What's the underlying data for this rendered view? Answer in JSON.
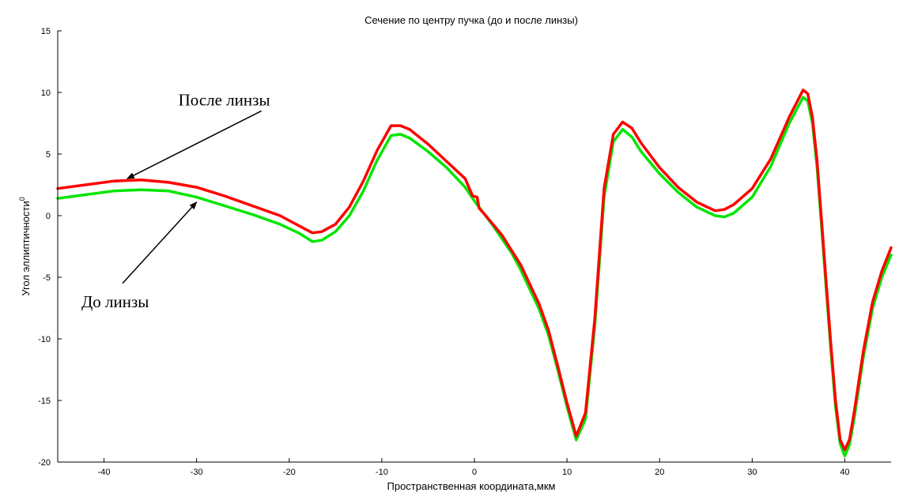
{
  "chart_data": {
    "type": "line",
    "title": "Сечение по центру пучка (до и после линзы)",
    "xlabel": "Пространственная координата,мкм",
    "ylabel": "Угол эллиптичности",
    "ylabel_sup": "0",
    "xlim": [
      -45,
      45
    ],
    "ylim": [
      -20,
      15
    ],
    "xticks": [
      -40,
      -30,
      -20,
      -10,
      0,
      10,
      20,
      30,
      40
    ],
    "yticks": [
      15,
      10,
      5,
      0,
      -5,
      -10,
      -15,
      -20
    ],
    "grid": false,
    "series": [
      {
        "name": "До линзы",
        "color": "#00e600",
        "points": [
          [
            -45,
            1.4
          ],
          [
            -42,
            1.7
          ],
          [
            -39,
            2.0
          ],
          [
            -36,
            2.1
          ],
          [
            -33,
            2.0
          ],
          [
            -30,
            1.5
          ],
          [
            -27,
            0.8
          ],
          [
            -24,
            0.1
          ],
          [
            -21,
            -0.7
          ],
          [
            -19,
            -1.4
          ],
          [
            -17.5,
            -2.1
          ],
          [
            -16.5,
            -2.0
          ],
          [
            -15,
            -1.3
          ],
          [
            -13.5,
            0.0
          ],
          [
            -12,
            2.0
          ],
          [
            -10.5,
            4.5
          ],
          [
            -9,
            6.5
          ],
          [
            -8,
            6.6
          ],
          [
            -7,
            6.3
          ],
          [
            -5,
            5.2
          ],
          [
            -3,
            3.9
          ],
          [
            -1,
            2.3
          ],
          [
            0,
            1.2
          ],
          [
            1,
            0.2
          ],
          [
            2,
            -0.8
          ],
          [
            3,
            -1.9
          ],
          [
            4,
            -3.0
          ],
          [
            5,
            -4.4
          ],
          [
            6,
            -6.0
          ],
          [
            7,
            -7.6
          ],
          [
            8,
            -9.7
          ],
          [
            9,
            -12.5
          ],
          [
            10,
            -15.5
          ],
          [
            11,
            -18.2
          ],
          [
            12,
            -16.5
          ],
          [
            13,
            -9.0
          ],
          [
            14,
            1.5
          ],
          [
            15,
            6.0
          ],
          [
            16,
            7.0
          ],
          [
            17,
            6.4
          ],
          [
            18,
            5.2
          ],
          [
            20,
            3.4
          ],
          [
            22,
            1.9
          ],
          [
            24,
            0.7
          ],
          [
            26,
            0.0
          ],
          [
            27,
            -0.1
          ],
          [
            28,
            0.2
          ],
          [
            30,
            1.5
          ],
          [
            32,
            4.0
          ],
          [
            34,
            7.5
          ],
          [
            35.5,
            9.6
          ],
          [
            36,
            9.3
          ],
          [
            36.5,
            7.5
          ],
          [
            37,
            4.0
          ],
          [
            37.5,
            -1.0
          ],
          [
            38,
            -6.0
          ],
          [
            38.5,
            -11.0
          ],
          [
            39,
            -15.5
          ],
          [
            39.5,
            -18.5
          ],
          [
            40,
            -19.5
          ],
          [
            40.5,
            -18.6
          ],
          [
            41,
            -16.5
          ],
          [
            42,
            -11.5
          ],
          [
            43,
            -7.5
          ],
          [
            44,
            -5.0
          ],
          [
            45,
            -3.2
          ]
        ]
      },
      {
        "name": "После линзы",
        "color": "#ff0000",
        "points": [
          [
            -45,
            2.2
          ],
          [
            -42,
            2.5
          ],
          [
            -39,
            2.8
          ],
          [
            -36,
            2.9
          ],
          [
            -33,
            2.7
          ],
          [
            -30,
            2.3
          ],
          [
            -27,
            1.6
          ],
          [
            -24,
            0.8
          ],
          [
            -21,
            0.0
          ],
          [
            -19,
            -0.8
          ],
          [
            -17.5,
            -1.4
          ],
          [
            -16.5,
            -1.3
          ],
          [
            -15,
            -0.7
          ],
          [
            -13.5,
            0.7
          ],
          [
            -12,
            2.8
          ],
          [
            -10.5,
            5.3
          ],
          [
            -9,
            7.3
          ],
          [
            -8,
            7.3
          ],
          [
            -7,
            7.0
          ],
          [
            -5,
            5.8
          ],
          [
            -3,
            4.4
          ],
          [
            -1,
            3.0
          ],
          [
            -0.2,
            1.6
          ],
          [
            0.3,
            1.5
          ],
          [
            0.5,
            0.6
          ],
          [
            1,
            0.2
          ],
          [
            2,
            -0.7
          ],
          [
            3,
            -1.6
          ],
          [
            4,
            -2.8
          ],
          [
            5,
            -4.0
          ],
          [
            6,
            -5.6
          ],
          [
            7,
            -7.2
          ],
          [
            8,
            -9.3
          ],
          [
            9,
            -12.2
          ],
          [
            10,
            -15.2
          ],
          [
            11,
            -17.9
          ],
          [
            12,
            -16.0
          ],
          [
            13,
            -8.4
          ],
          [
            14,
            2.2
          ],
          [
            15,
            6.6
          ],
          [
            16,
            7.6
          ],
          [
            17,
            7.1
          ],
          [
            18,
            5.9
          ],
          [
            20,
            3.9
          ],
          [
            22,
            2.3
          ],
          [
            24,
            1.1
          ],
          [
            26,
            0.4
          ],
          [
            27,
            0.5
          ],
          [
            28,
            0.9
          ],
          [
            30,
            2.2
          ],
          [
            32,
            4.6
          ],
          [
            34,
            8.0
          ],
          [
            35.5,
            10.2
          ],
          [
            36,
            9.9
          ],
          [
            36.5,
            8.0
          ],
          [
            37,
            4.5
          ],
          [
            37.5,
            -0.5
          ],
          [
            38,
            -5.5
          ],
          [
            38.5,
            -10.5
          ],
          [
            39,
            -15.0
          ],
          [
            39.5,
            -18.2
          ],
          [
            40,
            -19.0
          ],
          [
            40.5,
            -18.2
          ],
          [
            41,
            -16.0
          ],
          [
            42,
            -11.0
          ],
          [
            43,
            -7.0
          ],
          [
            44,
            -4.5
          ],
          [
            45,
            -2.6
          ]
        ]
      }
    ],
    "annotations": [
      {
        "text": "После линзы",
        "target": [
          -37.5,
          3.0
        ],
        "from": [
          -23,
          8.5
        ]
      },
      {
        "text": "До линзы",
        "target": [
          -30,
          1.1
        ],
        "from": [
          -38,
          -5.5
        ]
      }
    ]
  }
}
